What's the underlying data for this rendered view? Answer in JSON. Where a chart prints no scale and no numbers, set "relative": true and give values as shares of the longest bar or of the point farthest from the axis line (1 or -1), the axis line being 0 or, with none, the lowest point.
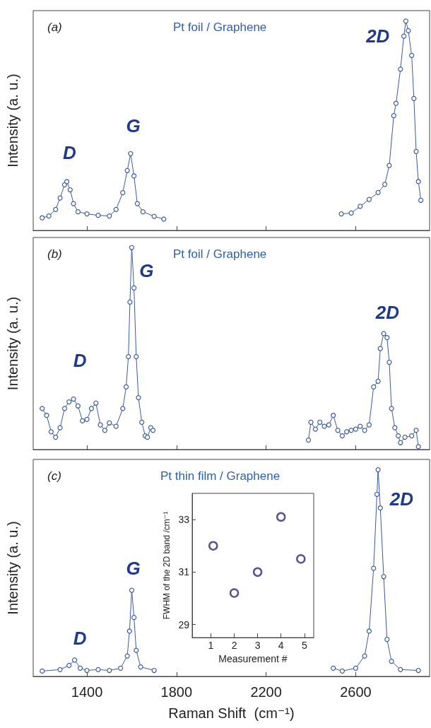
{
  "chart_data": [
    {
      "type": "line",
      "title": "(a)",
      "subtitle": "Pt foil / Graphene",
      "ylabel": "Intensity (a. u.)",
      "relative": true,
      "marker": "circle",
      "line_style": "solid",
      "tick_labels": false,
      "xlim": [
        1160,
        2930
      ],
      "xticks": [
        1400,
        1800,
        2200,
        2600
      ],
      "series": [
        {
          "color": "#3b5ba5",
          "x": [
            1200,
            1230,
            1260,
            1280,
            1300,
            1310,
            1325,
            1340,
            1360,
            1400,
            1450,
            1500,
            1530,
            1560,
            1580,
            1595,
            1610,
            1625,
            1650,
            1700,
            1743
          ],
          "values": [
            0.06,
            0.069,
            0.1,
            0.155,
            0.218,
            0.233,
            0.194,
            0.128,
            0.089,
            0.079,
            0.072,
            0.069,
            0.1,
            0.18,
            0.286,
            0.367,
            0.26,
            0.128,
            0.089,
            0.067,
            0.054
          ]
        },
        {
          "color": "#3b5ba5",
          "x": [
            2536,
            2580,
            2620,
            2660,
            2700,
            2730,
            2750,
            2770,
            2780,
            2800,
            2815,
            2824,
            2835,
            2850,
            2860,
            2870,
            2880,
            2891
          ],
          "values": [
            0.079,
            0.083,
            0.115,
            0.148,
            0.181,
            0.22,
            0.31,
            0.548,
            0.607,
            0.77,
            0.928,
            1.0,
            0.954,
            0.836,
            0.63,
            0.377,
            0.233,
            0.144
          ]
        }
      ],
      "annotations": [
        "D",
        "G",
        "2D"
      ]
    },
    {
      "type": "line",
      "title": "(b)",
      "subtitle": "Pt foil / Graphene",
      "ylabel": "Intensity (a. u.)",
      "relative": true,
      "marker": "circle",
      "line_style": "solid",
      "tick_labels": false,
      "xlim": [
        1160,
        2930
      ],
      "xticks": [
        1400,
        1800,
        2200,
        2600
      ],
      "series": [
        {
          "color": "#3b5ba5",
          "x": [
            1200,
            1220,
            1240,
            1260,
            1280,
            1300,
            1320,
            1340,
            1360,
            1380,
            1400,
            1420,
            1440,
            1460,
            1480,
            1500,
            1530,
            1560,
            1575,
            1585,
            1592,
            1600,
            1610,
            1620,
            1630,
            1645,
            1660,
            1670,
            1685,
            1695
          ],
          "values": [
            0.203,
            0.169,
            0.088,
            0.061,
            0.108,
            0.203,
            0.236,
            0.25,
            0.216,
            0.142,
            0.149,
            0.203,
            0.23,
            0.122,
            0.095,
            0.132,
            0.115,
            0.203,
            0.31,
            0.46,
            0.73,
            1.0,
            0.8,
            0.46,
            0.257,
            0.135,
            0.068,
            0.061,
            0.108,
            0.095
          ]
        },
        {
          "color": "#3b5ba5",
          "x": [
            2389,
            2400,
            2420,
            2440,
            2460,
            2480,
            2500,
            2520,
            2540,
            2560,
            2580,
            2600,
            2620,
            2640,
            2660,
            2680,
            2700,
            2710,
            2725,
            2740,
            2750,
            2760,
            2775,
            2790,
            2800,
            2820,
            2850,
            2870,
            2880
          ],
          "values": [
            0.047,
            0.135,
            0.101,
            0.135,
            0.115,
            0.122,
            0.169,
            0.095,
            0.068,
            0.088,
            0.095,
            0.101,
            0.115,
            0.095,
            0.122,
            0.31,
            0.338,
            0.5,
            0.574,
            0.554,
            0.432,
            0.203,
            0.108,
            0.068,
            0.034,
            0.061,
            0.068,
            0.095,
            0.014
          ]
        }
      ],
      "annotations": [
        "D",
        "G",
        "2D"
      ]
    },
    {
      "type": "line",
      "title": "(c)",
      "subtitle": "Pt thin film / Graphene",
      "xlabel": "Raman Shift  (cm⁻¹)",
      "ylabel": "Intensity (a. u.)",
      "relative": true,
      "marker": "circle",
      "line_style": "solid",
      "tick_labels": "x",
      "xlim": [
        1160,
        2930
      ],
      "xticks": [
        1400,
        1800,
        2200,
        2600
      ],
      "series": [
        {
          "color": "#3b5ba5",
          "x": [
            1200,
            1280,
            1320,
            1345,
            1370,
            1400,
            1450,
            1500,
            1550,
            1580,
            1590,
            1600,
            1610,
            1620,
            1640,
            1700
          ],
          "values": [
            0.026,
            0.033,
            0.053,
            0.079,
            0.04,
            0.029,
            0.033,
            0.029,
            0.04,
            0.099,
            0.219,
            0.417,
            0.285,
            0.126,
            0.046,
            0.029
          ]
        },
        {
          "color": "#3b5ba5",
          "x": [
            2500,
            2540,
            2600,
            2640,
            2660,
            2680,
            2695,
            2700,
            2710,
            2725,
            2740,
            2760,
            2800,
            2880
          ],
          "values": [
            0.04,
            0.026,
            0.04,
            0.099,
            0.219,
            0.523,
            0.881,
            1.0,
            0.815,
            0.483,
            0.179,
            0.073,
            0.033,
            0.029
          ]
        }
      ],
      "annotations": [
        "D",
        "G",
        "2D"
      ]
    },
    {
      "type": "scatter",
      "xlabel": "Measurement #",
      "ylabel": "FWHM of the 2D band /cm⁻¹",
      "marker": "circle",
      "xlim": [
        0.2,
        5.4
      ],
      "xticks": [
        1,
        2,
        3,
        4,
        5
      ],
      "ylim": [
        28.5,
        34
      ],
      "yticks": [
        29,
        31,
        33
      ],
      "x": [
        1.1,
        2,
        3,
        4,
        4.85
      ],
      "series": [
        {
          "color": "#2b2b78",
          "values": [
            32.0,
            30.2,
            31.0,
            33.1,
            31.5
          ]
        }
      ]
    }
  ]
}
